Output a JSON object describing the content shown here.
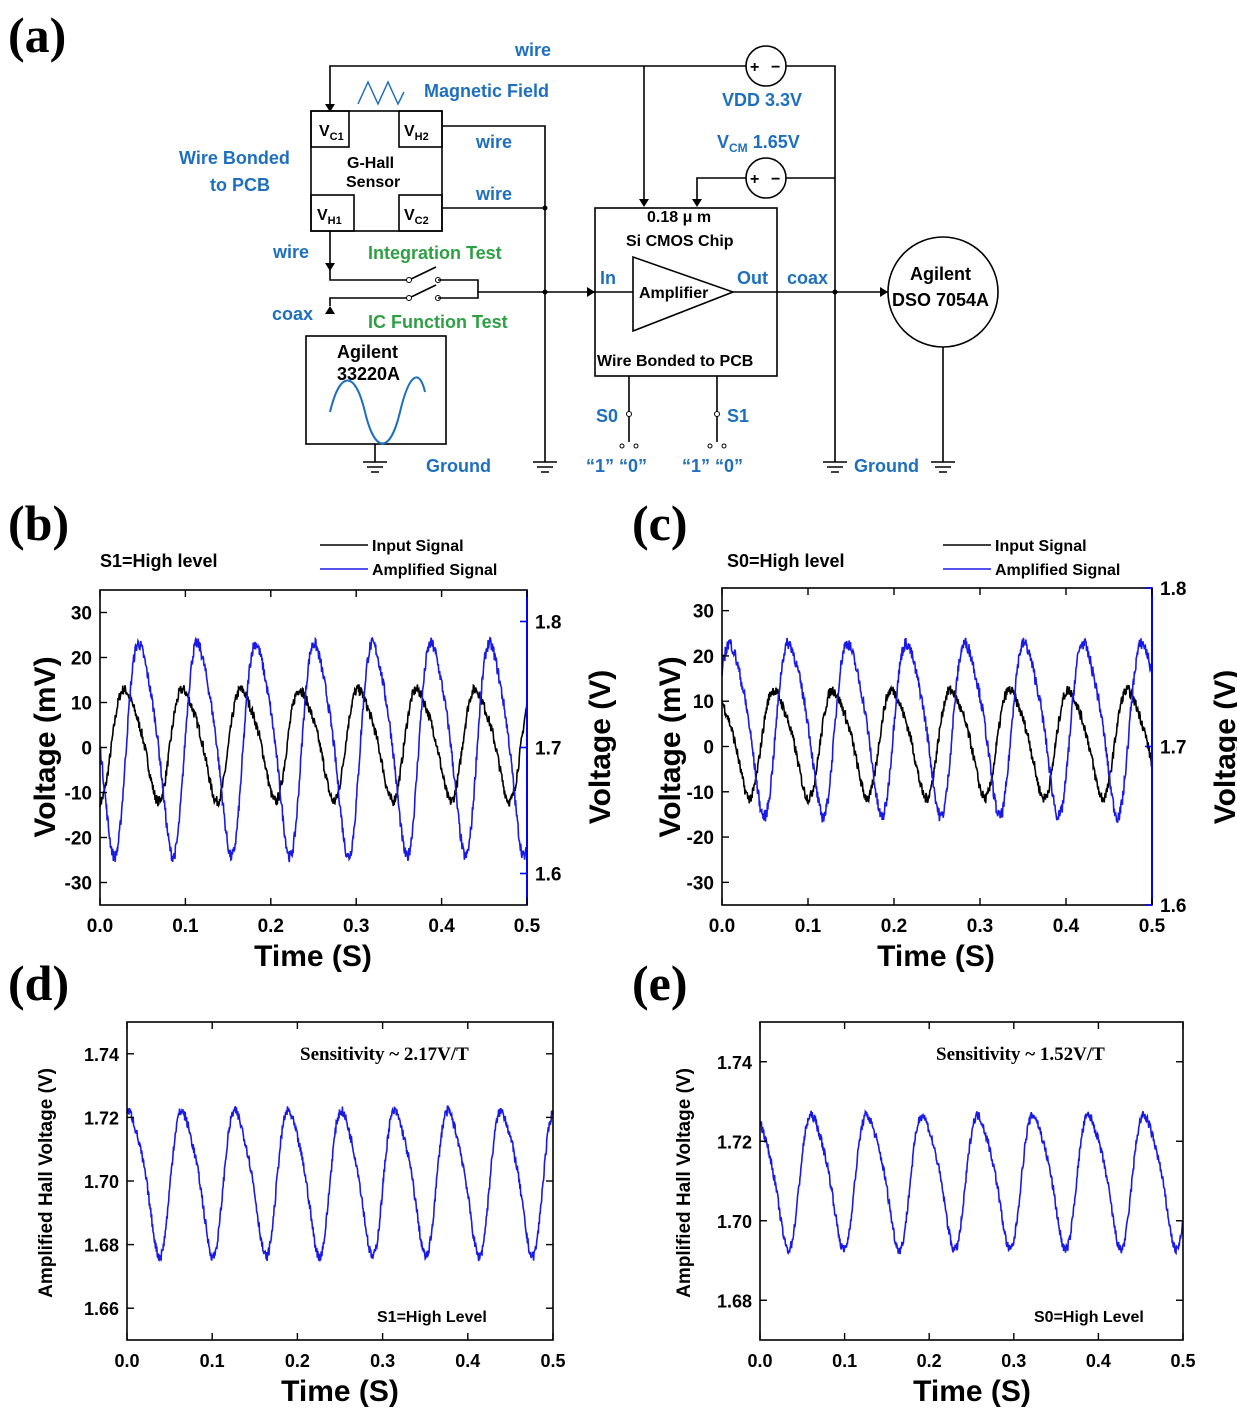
{
  "panel_labels": [
    "(a)",
    "(b)",
    "(c)",
    "(d)",
    "(e)"
  ],
  "circuit": {
    "wire_top": "wire",
    "magnetic_field": "Magnetic Field",
    "vdd": "VDD 3.3V",
    "vcm_v": "V",
    "vcm_sub": "CM",
    "vcm_val": " 1.65V",
    "sensor_name_1": "G-Hall",
    "sensor_name_2": "Sensor",
    "pins": [
      {
        "main": "V",
        "sub": "C1"
      },
      {
        "main": "V",
        "sub": "H2"
      },
      {
        "main": "V",
        "sub": "H1"
      },
      {
        "main": "V",
        "sub": "C2"
      }
    ],
    "wire_bonded_1": "Wire Bonded",
    "wire_bonded_2": "to PCB",
    "wire_r1": "wire",
    "wire_r2": "wire",
    "wire_left": "wire",
    "integration_test": "Integration Test",
    "ic_function_test": "IC Function Test",
    "coax_left": "coax",
    "func_gen_1": "Agilent",
    "func_gen_2": "33220A",
    "ground_left": "Ground",
    "chip_1": "0.18 μ m",
    "chip_2": "Si CMOS Chip",
    "chip_in": "In",
    "chip_amp": "Amplifier",
    "chip_out": "Out",
    "chip_bonded": "Wire Bonded to PCB",
    "coax_right": "coax",
    "scope_1": "Agilent",
    "scope_2": "DSO 7054A",
    "s0": "S0",
    "s1": "S1",
    "s0_states": "“1” “0”",
    "s1_states": "“1” “0”",
    "ground_right": "Ground",
    "src_plus": "+",
    "src_minus": "−"
  },
  "chart_data": [
    {
      "id": "b",
      "type": "line",
      "annotation": "S1=High level",
      "legend": [
        "Input Signal",
        "Amplified Signal"
      ],
      "xlabel": "Time (S)",
      "ylabel_left": "Voltage (mV)",
      "ylabel_right": "Voltage (V)",
      "xlim": [
        0,
        0.5
      ],
      "ylim_left": [
        -35,
        35
      ],
      "ylim_right": [
        1.575,
        1.825
      ],
      "xticks": [
        "0.0",
        "0.1",
        "0.2",
        "0.3",
        "0.4",
        "0.5"
      ],
      "yticks_left": [
        "-30",
        "-20",
        "-10",
        "0",
        "10",
        "20",
        "30"
      ],
      "yticks_right": [
        "1.6",
        "1.7",
        "1.8"
      ],
      "series": [
        {
          "name": "Input Signal",
          "color": "#000000",
          "axis": "left",
          "period": 0.0685,
          "amp": 12.5,
          "offset": 1.5,
          "phase": 0.015,
          "noise": 1.5
        },
        {
          "name": "Amplified Signal",
          "color": "#1a1ae6",
          "axis": "right",
          "period": 0.0685,
          "amp": 0.085,
          "offset": 1.705,
          "phase": 0.032,
          "noise": 0.006
        }
      ]
    },
    {
      "id": "c",
      "type": "line",
      "annotation": "S0=High level",
      "legend": [
        "Input Signal",
        "Amplified Signal"
      ],
      "xlabel": "Time (S)",
      "ylabel_left": "Voltage (mV)",
      "ylabel_right": "Voltage (V)",
      "xlim": [
        0,
        0.5
      ],
      "ylim_left": [
        -35,
        35
      ],
      "ylim_right": [
        1.6,
        1.8
      ],
      "xticks": [
        "0.0",
        "0.1",
        "0.2",
        "0.3",
        "0.4",
        "0.5"
      ],
      "yticks_left": [
        "-30",
        "-20",
        "-10",
        "0",
        "10",
        "20",
        "30"
      ],
      "yticks_right": [
        "1.6",
        "1.7",
        "1.8"
      ],
      "series": [
        {
          "name": "Input Signal",
          "color": "#000000",
          "axis": "left",
          "period": 0.0685,
          "amp": 12,
          "offset": 1.5,
          "phase": 0.047,
          "noise": 1.5
        },
        {
          "name": "Amplified Signal",
          "color": "#1a1ae6",
          "axis": "right",
          "period": 0.0685,
          "amp": 0.055,
          "offset": 1.715,
          "phase": 0.064,
          "noise": 0.005
        }
      ]
    },
    {
      "id": "d",
      "type": "line",
      "annotation_top": "Sensitivity ~ 2.17V/T",
      "annotation_bottom": "S1=High Level",
      "xlabel": "Time (S)",
      "ylabel": "Amplified Hall Voltage (V)",
      "xlim": [
        0,
        0.5
      ],
      "ylim": [
        1.65,
        1.75
      ],
      "xticks": [
        "0.0",
        "0.1",
        "0.2",
        "0.3",
        "0.4",
        "0.5"
      ],
      "yticks": [
        "1.66",
        "1.68",
        "1.70",
        "1.72",
        "1.74"
      ],
      "series": [
        {
          "name": "",
          "color": "#1a1ae6",
          "period": 0.0625,
          "amp": 0.023,
          "offset": 1.701,
          "phase": 0.052,
          "noise": 0.002
        }
      ]
    },
    {
      "id": "e",
      "type": "line",
      "annotation_top": "Sensitivity ~ 1.52V/T",
      "annotation_bottom": "S0=High Level",
      "xlabel": "Time (S)",
      "ylabel": "Amplified Hall Voltage (V)",
      "xlim": [
        0,
        0.5
      ],
      "ylim": [
        1.67,
        1.75
      ],
      "xticks": [
        "0.0",
        "0.1",
        "0.2",
        "0.3",
        "0.4",
        "0.5"
      ],
      "yticks": [
        "1.68",
        "1.70",
        "1.72",
        "1.74"
      ],
      "series": [
        {
          "name": "",
          "color": "#1a1ae6",
          "period": 0.0655,
          "amp": 0.017,
          "offset": 1.711,
          "phase": 0.048,
          "noise": 0.0015
        }
      ]
    }
  ]
}
